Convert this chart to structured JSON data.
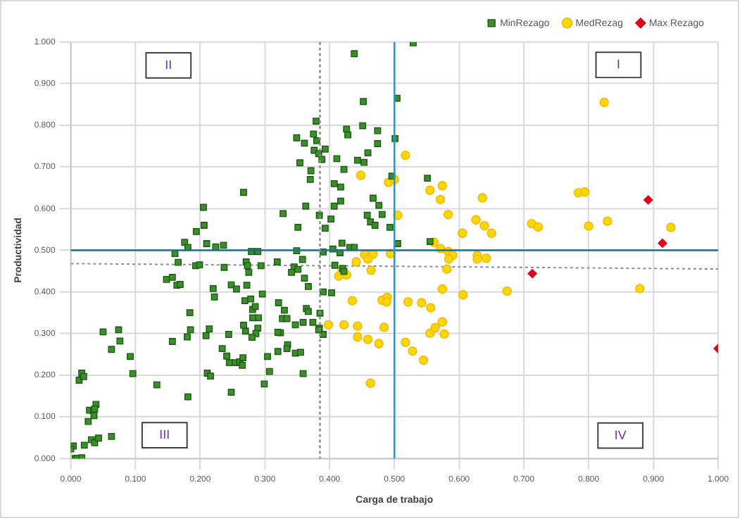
{
  "chart_data": {
    "type": "scatter",
    "xlabel": "Carga de trabajo",
    "ylabel": "Productividad",
    "xlim": [
      0,
      1
    ],
    "ylim": [
      0,
      1
    ],
    "xticks": [
      {
        "value": 0,
        "label": "0.000"
      },
      {
        "value": 0.1,
        "label": "0.100"
      },
      {
        "value": 0.2,
        "label": "0.200"
      },
      {
        "value": 0.3,
        "label": "0.300"
      },
      {
        "value": 0.4,
        "label": "0.400"
      },
      {
        "value": 0.5,
        "label": "0.500"
      },
      {
        "value": 0.6,
        "label": "0.600"
      },
      {
        "value": 0.7,
        "label": "0.700"
      },
      {
        "value": 0.8,
        "label": "0.800"
      },
      {
        "value": 0.9,
        "label": "0.900"
      },
      {
        "value": 1,
        "label": "1.000"
      }
    ],
    "yticks": [
      {
        "value": 0,
        "label": "0.000"
      },
      {
        "value": 0.1,
        "label": "0.100"
      },
      {
        "value": 0.2,
        "label": "0.200"
      },
      {
        "value": 0.3,
        "label": "0.300"
      },
      {
        "value": 0.4,
        "label": "0.400"
      },
      {
        "value": 0.5,
        "label": "0.500"
      },
      {
        "value": 0.6,
        "label": "0.600"
      },
      {
        "value": 0.7,
        "label": "0.700"
      },
      {
        "value": 0.8,
        "label": "0.800"
      },
      {
        "value": 0.9,
        "label": "0.900"
      },
      {
        "value": 1,
        "label": "1.000"
      }
    ],
    "grid": true,
    "legend": "top right",
    "series": [
      {
        "name": "MinRezago",
        "type": "scatter",
        "marker": "square",
        "color": "#3a8f2a",
        "x": [
          0.267,
          0.205,
          0.328,
          0.206,
          0.194,
          0.176,
          0.181,
          0.161,
          0.21,
          0.224,
          0.236,
          0.166,
          0.193,
          0.199,
          0.237,
          0.271,
          0.273,
          0.279,
          0.289,
          0.275,
          0.294,
          0.319,
          0.148,
          0.157,
          0.164,
          0.169,
          0.22,
          0.222,
          0.248,
          0.256,
          0.272,
          0.269,
          0.278,
          0.281,
          0.285,
          0.296,
          0.321,
          0.33,
          0.327,
          0.334,
          0.184,
          0.185,
          0.18,
          0.214,
          0.209,
          0.244,
          0.234,
          0.241,
          0.245,
          0.254,
          0.261,
          0.266,
          0.265,
          0.27,
          0.267,
          0.29,
          0.281,
          0.289,
          0.286,
          0.28,
          0.304,
          0.307,
          0.299,
          0.32,
          0.324,
          0.335,
          0.334,
          0.32,
          0.157,
          0.181,
          0.211,
          0.216,
          0.248,
          0.133,
          0.05,
          0.074,
          0.076,
          0.063,
          0.092,
          0.096,
          0.013,
          0.017,
          0.02,
          0.039,
          0.029,
          0.035,
          0.036,
          0.027,
          0.037,
          0.032,
          0.037,
          0.043,
          0.063,
          0.021,
          0.004,
          0,
          0.007,
          0.01,
          0.017,
          0.529,
          0.438,
          0.452,
          0.504,
          0.379,
          0.451,
          0.426,
          0.428,
          0.474,
          0.349,
          0.375,
          0.361,
          0.38,
          0.376,
          0.383,
          0.393,
          0.388,
          0.411,
          0.474,
          0.501,
          0.459,
          0.443,
          0.453,
          0.354,
          0.371,
          0.422,
          0.37,
          0.496,
          0.551,
          0.407,
          0.417,
          0.363,
          0.407,
          0.417,
          0.467,
          0.476,
          0.384,
          0.402,
          0.458,
          0.481,
          0.351,
          0.393,
          0.463,
          0.47,
          0.493,
          0.505,
          0.555,
          0.349,
          0.39,
          0.405,
          0.419,
          0.431,
          0.438,
          0.416,
          0.358,
          0.408,
          0.345,
          0.351,
          0.341,
          0.42,
          0.422,
          0.361,
          0.367,
          0.39,
          0.403,
          0.364,
          0.367,
          0.385,
          0.359,
          0.374,
          0.347,
          0.384,
          0.39,
          0.383,
          0.347,
          0.355,
          0.359
        ],
        "values": [
          0.639,
          0.603,
          0.588,
          0.56,
          0.545,
          0.519,
          0.507,
          0.492,
          0.516,
          0.508,
          0.512,
          0.471,
          0.463,
          0.465,
          0.459,
          0.472,
          0.463,
          0.497,
          0.497,
          0.447,
          0.463,
          0.472,
          0.43,
          0.435,
          0.416,
          0.418,
          0.408,
          0.388,
          0.417,
          0.407,
          0.416,
          0.379,
          0.383,
          0.358,
          0.365,
          0.395,
          0.374,
          0.356,
          0.336,
          0.336,
          0.35,
          0.309,
          0.292,
          0.311,
          0.295,
          0.298,
          0.264,
          0.246,
          0.23,
          0.23,
          0.232,
          0.242,
          0.224,
          0.306,
          0.32,
          0.338,
          0.338,
          0.313,
          0.3,
          0.291,
          0.245,
          0.209,
          0.179,
          0.257,
          0.302,
          0.273,
          0.264,
          0.303,
          0.281,
          0.148,
          0.205,
          0.198,
          0.159,
          0.177,
          0.304,
          0.309,
          0.282,
          0.262,
          0.245,
          0.204,
          0.188,
          0.205,
          0.197,
          0.13,
          0.116,
          0.114,
          0.103,
          0.089,
          0.119,
          0.045,
          0.038,
          0.049,
          0.053,
          0.032,
          0.03,
          0.023,
          0,
          0,
          0.002,
          0.998,
          0.972,
          0.857,
          0.865,
          0.81,
          0.799,
          0.791,
          0.777,
          0.787,
          0.77,
          0.779,
          0.757,
          0.763,
          0.74,
          0.732,
          0.743,
          0.718,
          0.72,
          0.756,
          0.768,
          0.734,
          0.716,
          0.711,
          0.71,
          0.691,
          0.694,
          0.67,
          0.678,
          0.673,
          0.66,
          0.652,
          0.606,
          0.606,
          0.618,
          0.625,
          0.608,
          0.584,
          0.575,
          0.584,
          0.586,
          0.555,
          0.553,
          0.568,
          0.56,
          0.555,
          0.516,
          0.521,
          0.499,
          0.496,
          0.503,
          0.517,
          0.507,
          0.507,
          0.494,
          0.478,
          0.464,
          0.46,
          0.454,
          0.447,
          0.456,
          0.449,
          0.433,
          0.413,
          0.4,
          0.398,
          0.36,
          0.353,
          0.349,
          0.327,
          0.327,
          0.321,
          0.313,
          0.298,
          0.309,
          0.253,
          0.255,
          0.204
        ]
      },
      {
        "name": "MedRezag",
        "type": "scatter",
        "marker": "circle",
        "color": "#ffd700",
        "x": [
          0.517,
          0.448,
          0.491,
          0.5,
          0.555,
          0.574,
          0.571,
          0.636,
          0.505,
          0.583,
          0.626,
          0.639,
          0.605,
          0.65,
          0.561,
          0.571,
          0.583,
          0.59,
          0.584,
          0.467,
          0.494,
          0.454,
          0.459,
          0.441,
          0.464,
          0.581,
          0.628,
          0.628,
          0.642,
          0.419,
          0.426,
          0.414,
          0.574,
          0.606,
          0.674,
          0.435,
          0.481,
          0.489,
          0.488,
          0.521,
          0.542,
          0.556,
          0.398,
          0.422,
          0.443,
          0.484,
          0.563,
          0.574,
          0.555,
          0.577,
          0.443,
          0.459,
          0.476,
          0.517,
          0.528,
          0.545,
          0.463,
          0.824,
          0.784,
          0.794,
          0.712,
          0.722,
          0.8,
          0.829,
          0.927,
          0.879
        ],
        "values": [
          0.728,
          0.68,
          0.663,
          0.67,
          0.644,
          0.655,
          0.622,
          0.626,
          0.584,
          0.586,
          0.573,
          0.559,
          0.541,
          0.541,
          0.519,
          0.504,
          0.497,
          0.488,
          0.479,
          0.491,
          0.492,
          0.49,
          0.479,
          0.472,
          0.452,
          0.455,
          0.488,
          0.479,
          0.481,
          0.454,
          0.441,
          0.438,
          0.407,
          0.393,
          0.402,
          0.379,
          0.38,
          0.387,
          0.376,
          0.376,
          0.374,
          0.362,
          0.321,
          0.321,
          0.318,
          0.315,
          0.314,
          0.328,
          0.301,
          0.299,
          0.292,
          0.286,
          0.276,
          0.279,
          0.258,
          0.236,
          0.181,
          0.855,
          0.638,
          0.64,
          0.564,
          0.556,
          0.558,
          0.57,
          0.555,
          0.408
        ]
      },
      {
        "name": "Max Rezago",
        "type": "scatter",
        "marker": "diamond",
        "color": "#e0001a",
        "x": [
          0.892,
          0.914,
          0.713,
          1.0
        ],
        "values": [
          0.621,
          0.517,
          0.444,
          0.264
        ]
      },
      {
        "type": "line",
        "color": "#8c8c8c",
        "line_style": "dotted",
        "x": [
          0,
          1
        ],
        "values": [
          0.468,
          0.455
        ]
      }
    ],
    "ref_lines": [
      {
        "axis": "y",
        "value": 0.5,
        "color": "#1f6f8b",
        "line_style": "solid"
      },
      {
        "axis": "x",
        "value": 0.5,
        "color": "#1aa0d8",
        "line_style": "solid"
      },
      {
        "axis": "x",
        "value": 0.385,
        "color": "#8c8c8c",
        "line_style": "dotted"
      }
    ],
    "annotations": [
      {
        "text": "I",
        "x": 0.846,
        "y": 0.945
      },
      {
        "text": "II",
        "x": 0.151,
        "y": 0.944
      },
      {
        "text": "III",
        "x": 0.145,
        "y": 0.056
      },
      {
        "text": "IV",
        "x": 0.849,
        "y": 0.055
      }
    ]
  }
}
